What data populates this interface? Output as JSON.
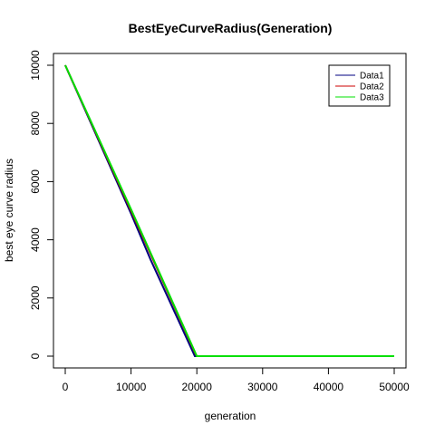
{
  "chart_data": {
    "type": "line",
    "title": "BestEyeCurveRadius(Generation)",
    "xlabel": "generation",
    "ylabel": "best eye curve radius",
    "xlim": [
      0,
      50000
    ],
    "ylim": [
      0,
      10000
    ],
    "x_ticks": [
      "0",
      "10000",
      "20000",
      "30000",
      "40000",
      "50000"
    ],
    "x_tick_values": [
      0,
      10000,
      20000,
      30000,
      40000,
      50000
    ],
    "y_ticks": [
      "0",
      "2000",
      "4000",
      "6000",
      "8000",
      "10000"
    ],
    "y_tick_values": [
      0,
      2000,
      4000,
      6000,
      8000,
      10000
    ],
    "grid": false,
    "legend_position": "top-right",
    "series": [
      {
        "name": "Data1",
        "color": "#000080",
        "x": [
          0,
          10000,
          13000,
          19700,
          20000,
          50000
        ],
        "y": [
          10000,
          4900,
          3300,
          0,
          0,
          0
        ]
      },
      {
        "name": "Data2",
        "color": "#cc0000",
        "x": [
          0,
          10000,
          19800,
          20000,
          50000
        ],
        "y": [
          10000,
          5000,
          80,
          0,
          0
        ]
      },
      {
        "name": "Data3",
        "color": "#00e000",
        "x": [
          0,
          10000,
          20000,
          50000
        ],
        "y": [
          10000,
          5050,
          0,
          0
        ]
      }
    ]
  }
}
